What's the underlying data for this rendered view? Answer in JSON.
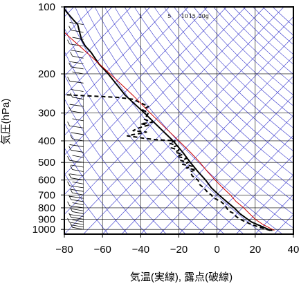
{
  "chart_data": {
    "type": "line",
    "chart_kind": "skew-T log-P (emagram)",
    "xlabel": "気温(実線), 露点(破線)",
    "ylabel": "気圧(hPa)",
    "xlim": [
      -80,
      40
    ],
    "ylim": [
      1050,
      100
    ],
    "y_scale": "log",
    "grid": true,
    "x_ticks": [
      "−80",
      "−60",
      "−40",
      "−20",
      "0",
      "20",
      "40"
    ],
    "y_ticks": [
      {
        "p": 100,
        "label": "100"
      },
      {
        "p": 200,
        "label": "200"
      },
      {
        "p": 300,
        "label": "300"
      },
      {
        "p": 400,
        "label": "400"
      },
      {
        "p": 500,
        "label": "500"
      },
      {
        "p": 600,
        "label": "600"
      },
      {
        "p": 700,
        "label": "700"
      },
      {
        "p": 800,
        "label": "800"
      },
      {
        "p": 900,
        "label": "900"
      },
      {
        "p": 1000,
        "label": "1000"
      }
    ],
    "mixing_ratio_labels": [
      {
        "t": -40,
        "label": "1"
      },
      {
        "t": -25,
        "label": "5"
      },
      {
        "t": -17,
        "label": "10"
      },
      {
        "t": -13,
        "label": "15"
      },
      {
        "t": -7,
        "label": "20g"
      }
    ],
    "colors": {
      "temperature": "#000000",
      "dewpoint": "#000000",
      "parcel": "#cc0000",
      "reference_lines": "#3333cc",
      "grid": "#000000"
    },
    "series": [
      {
        "role": "temperature",
        "style": "solid",
        "points": [
          [
            1010,
            29
          ],
          [
            1000,
            27
          ],
          [
            975,
            24
          ],
          [
            950,
            21
          ],
          [
            925,
            18
          ],
          [
            900,
            16
          ],
          [
            850,
            12
          ],
          [
            800,
            9
          ],
          [
            750,
            5
          ],
          [
            700,
            1
          ],
          [
            650,
            -3
          ],
          [
            600,
            -6
          ],
          [
            550,
            -10
          ],
          [
            500,
            -14
          ],
          [
            450,
            -18
          ],
          [
            400,
            -23
          ],
          [
            350,
            -30
          ],
          [
            300,
            -38
          ],
          [
            250,
            -48
          ],
          [
            200,
            -57
          ],
          [
            180,
            -62
          ],
          [
            160,
            -66
          ],
          [
            150,
            -69
          ],
          [
            140,
            -71
          ],
          [
            130,
            -72
          ],
          [
            120,
            -73
          ],
          [
            115,
            -75
          ],
          [
            110,
            -77
          ],
          [
            105,
            -79
          ],
          [
            102,
            -80
          ],
          [
            100,
            -80
          ]
        ]
      },
      {
        "role": "dewpoint",
        "style": "dashed",
        "points": [
          [
            1010,
            28
          ],
          [
            1000,
            26
          ],
          [
            975,
            22
          ],
          [
            950,
            18
          ],
          [
            925,
            15
          ],
          [
            900,
            12
          ],
          [
            875,
            10
          ],
          [
            850,
            9
          ],
          [
            825,
            6
          ],
          [
            800,
            5
          ],
          [
            775,
            4
          ],
          [
            750,
            2
          ],
          [
            720,
            -2
          ],
          [
            700,
            -3
          ],
          [
            680,
            -5
          ],
          [
            650,
            -7
          ],
          [
            630,
            -9
          ],
          [
            600,
            -10
          ],
          [
            575,
            -13
          ],
          [
            550,
            -14
          ],
          [
            540,
            -11
          ],
          [
            530,
            -16
          ],
          [
            520,
            -13
          ],
          [
            510,
            -18
          ],
          [
            500,
            -15
          ],
          [
            490,
            -19
          ],
          [
            480,
            -16
          ],
          [
            470,
            -21
          ],
          [
            460,
            -18
          ],
          [
            450,
            -22
          ],
          [
            440,
            -20
          ],
          [
            430,
            -24
          ],
          [
            420,
            -21
          ],
          [
            410,
            -25
          ],
          [
            400,
            -22
          ],
          [
            395,
            -32
          ],
          [
            390,
            -38
          ],
          [
            385,
            -42
          ],
          [
            380,
            -47
          ],
          [
            375,
            -44
          ],
          [
            370,
            -40
          ],
          [
            365,
            -37
          ],
          [
            360,
            -44
          ],
          [
            350,
            -41
          ],
          [
            340,
            -36
          ],
          [
            335,
            -40
          ],
          [
            330,
            -34
          ],
          [
            320,
            -38
          ],
          [
            310,
            -37
          ],
          [
            300,
            -36
          ],
          [
            290,
            -39
          ],
          [
            280,
            -36
          ],
          [
            270,
            -40
          ],
          [
            260,
            -44
          ],
          [
            255,
            -52
          ],
          [
            252,
            -64
          ],
          [
            250,
            -72
          ],
          [
            248,
            -80
          ]
        ]
      },
      {
        "role": "parcel",
        "style": "solid-red",
        "points": [
          [
            1010,
            30
          ],
          [
            950,
            24
          ],
          [
            900,
            20
          ],
          [
            850,
            17
          ],
          [
            800,
            14
          ],
          [
            750,
            10
          ],
          [
            700,
            7
          ],
          [
            650,
            3
          ],
          [
            600,
            -1
          ],
          [
            550,
            -5
          ],
          [
            500,
            -9
          ],
          [
            450,
            -14
          ],
          [
            400,
            -20
          ],
          [
            350,
            -27
          ],
          [
            300,
            -35
          ],
          [
            250,
            -44
          ],
          [
            200,
            -56
          ],
          [
            170,
            -65
          ],
          [
            150,
            -72
          ],
          [
            135,
            -78
          ],
          [
            130,
            -80
          ]
        ]
      }
    ],
    "wind_barbs": {
      "present": true,
      "column_x": -70,
      "pressures": [
        1000,
        975,
        950,
        925,
        900,
        875,
        850,
        825,
        800,
        775,
        750,
        725,
        700,
        675,
        650,
        625,
        600,
        575,
        550,
        525,
        500,
        475,
        450,
        425,
        400,
        375,
        350,
        325,
        300,
        280,
        260,
        240,
        220,
        200,
        190,
        180,
        170,
        160,
        150,
        140,
        130,
        120
      ]
    }
  }
}
